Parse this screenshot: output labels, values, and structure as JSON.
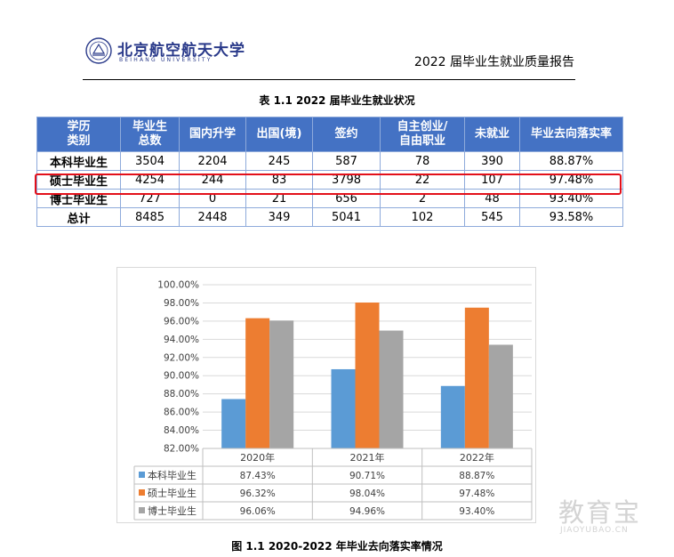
{
  "header": {
    "logo_cn": "北京航空航天大学",
    "logo_en": "BEIHANG UNIVERSITY",
    "report_title": "2022 届毕业生就业质量报告"
  },
  "table": {
    "caption": "表 1.1   2022 届毕业生就业状况",
    "headers": [
      [
        "学历",
        "类别"
      ],
      [
        "毕业生",
        "总数"
      ],
      [
        "国内升学"
      ],
      [
        "出国(境)"
      ],
      [
        "签约"
      ],
      [
        "自主创业/",
        "自由职业"
      ],
      [
        "未就业"
      ],
      [
        "毕业去向落实率"
      ]
    ],
    "rows": [
      [
        "本科毕业生",
        "3504",
        "2204",
        "245",
        "587",
        "78",
        "390",
        "88.87%"
      ],
      [
        "硕士毕业生",
        "4254",
        "244",
        "83",
        "3798",
        "22",
        "107",
        "97.48%"
      ],
      [
        "博士毕业生",
        "727",
        "0",
        "21",
        "656",
        "2",
        "48",
        "93.40%"
      ],
      [
        "总计",
        "8485",
        "2448",
        "349",
        "5041",
        "102",
        "545",
        "93.58%"
      ]
    ],
    "highlighted_row": 1,
    "highlight_color": "#e3101a",
    "header_color": "#4472c4"
  },
  "chart_data": {
    "type": "bar",
    "categories": [
      "2020年",
      "2021年",
      "2022年"
    ],
    "series": [
      {
        "name": "本科毕业生",
        "values": [
          87.43,
          90.71,
          88.87
        ],
        "labels": [
          "87.43%",
          "90.71%",
          "88.87%"
        ],
        "color": "#5b9bd5"
      },
      {
        "name": "硕士毕业生",
        "values": [
          96.32,
          98.04,
          97.48
        ],
        "labels": [
          "96.32%",
          "98.04%",
          "97.48%"
        ],
        "color": "#ed7d31"
      },
      {
        "name": "博士毕业生",
        "values": [
          96.06,
          94.96,
          93.4
        ],
        "labels": [
          "96.06%",
          "94.96%",
          "93.40%"
        ],
        "color": "#a5a5a5"
      }
    ],
    "ylim": [
      82,
      100
    ],
    "yticks": [
      "82.00%",
      "84.00%",
      "86.00%",
      "88.00%",
      "90.00%",
      "92.00%",
      "94.00%",
      "96.00%",
      "98.00%",
      "100.00%"
    ],
    "grid": true,
    "legend": "data table below chart",
    "title": "",
    "xlabel": "",
    "ylabel": ""
  },
  "figure": {
    "caption": "图 1.1   2020-2022 年毕业去向落实率情况"
  },
  "watermark": {
    "cn": "教育宝",
    "en": "JIAOYUBAO.CN"
  }
}
